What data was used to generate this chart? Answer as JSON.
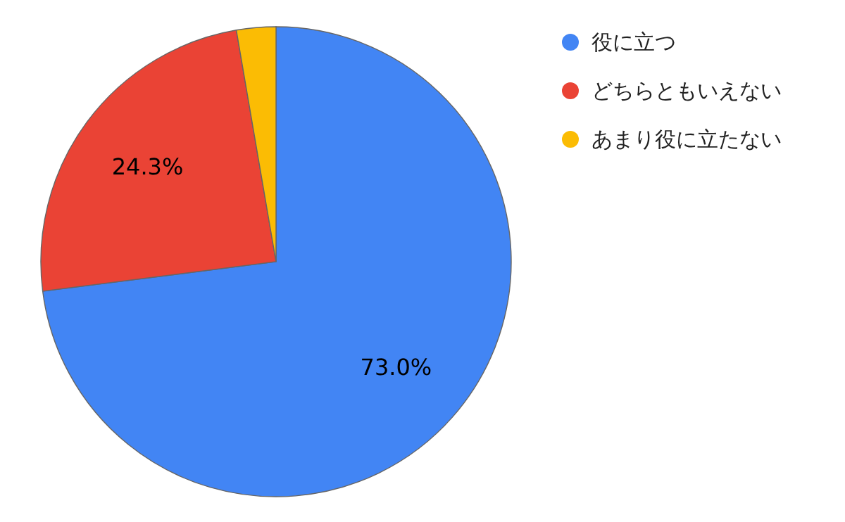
{
  "chart_data": {
    "type": "pie",
    "categories": [
      "役に立つ",
      "どちらともいえない",
      "あまり役に立たない"
    ],
    "values": [
      73.0,
      24.3,
      2.7
    ],
    "colors": [
      "#4285f4",
      "#ea4335",
      "#fbbc04"
    ],
    "value_labels": [
      "73.0%",
      "24.3%",
      null
    ],
    "legend": "right"
  }
}
